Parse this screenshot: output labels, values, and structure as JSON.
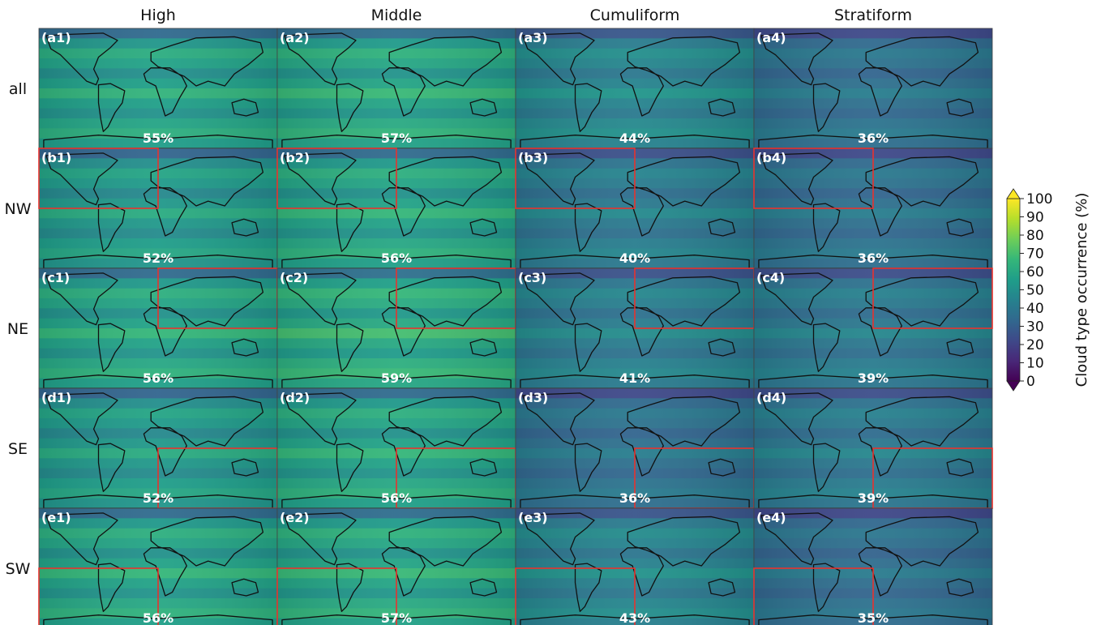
{
  "colors": {
    "viridis": [
      "#440154",
      "#482878",
      "#3e4989",
      "#31688e",
      "#26828e",
      "#1f9e89",
      "#35b779",
      "#6ece58",
      "#b5de2b",
      "#fde725"
    ],
    "region_box": "#e8322e",
    "land_outline": "#111111"
  },
  "chart_data": {
    "type": "heatmap",
    "columns": [
      "High",
      "Middle",
      "Cumuliform",
      "Stratiform"
    ],
    "rows": [
      "all",
      "NW",
      "NE",
      "SE",
      "SW"
    ],
    "panel_labels": [
      [
        "(a1)",
        "(a2)",
        "(a3)",
        "(a4)"
      ],
      [
        "(b1)",
        "(b2)",
        "(b3)",
        "(b4)"
      ],
      [
        "(c1)",
        "(c2)",
        "(c3)",
        "(c4)"
      ],
      [
        "(d1)",
        "(d2)",
        "(d3)",
        "(d4)"
      ],
      [
        "(e1)",
        "(e2)",
        "(e3)",
        "(e4)"
      ]
    ],
    "panel_means_text": [
      [
        "55%",
        "57%",
        "44%",
        "36%"
      ],
      [
        "52%",
        "56%",
        "40%",
        "36%"
      ],
      [
        "56%",
        "59%",
        "41%",
        "39%"
      ],
      [
        "52%",
        "56%",
        "36%",
        "39%"
      ],
      [
        "56%",
        "57%",
        "43%",
        "35%"
      ]
    ],
    "panel_means": [
      [
        55,
        57,
        44,
        36
      ],
      [
        52,
        56,
        40,
        36
      ],
      [
        56,
        59,
        41,
        39
      ],
      [
        52,
        56,
        36,
        39
      ],
      [
        56,
        57,
        43,
        35
      ]
    ],
    "highlighted_region": [
      "all",
      "NW",
      "NE",
      "SE",
      "SW"
    ],
    "colorbar": {
      "label": "Cloud type occurrence (%)",
      "ticks": [
        0,
        10,
        20,
        30,
        40,
        50,
        60,
        70,
        80,
        90,
        100
      ],
      "range": [
        0,
        100
      ],
      "extend": "both"
    }
  }
}
